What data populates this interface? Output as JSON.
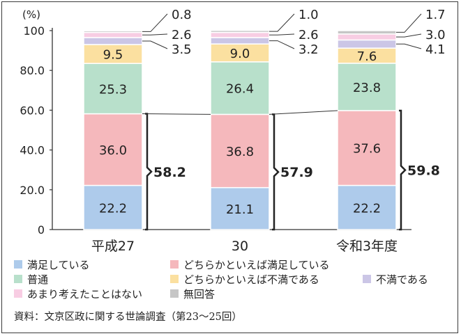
{
  "chart_data": {
    "type": "bar",
    "stacked": true,
    "y_unit": "(%)",
    "ylim": [
      0,
      100
    ],
    "y_ticks": [
      "0",
      "20.0",
      "40.0",
      "60.0",
      "80.0",
      "100"
    ],
    "categories": [
      "平成27",
      "30",
      "令和3年度"
    ],
    "series": [
      {
        "name": "満足している",
        "color": "#aecbeb",
        "values": [
          22.2,
          21.1,
          22.2
        ]
      },
      {
        "name": "どちらかといえば満足している",
        "color": "#f5b8bc",
        "values": [
          36.0,
          36.8,
          37.6
        ]
      },
      {
        "name": "普通",
        "color": "#b8e0cb",
        "values": [
          25.3,
          26.4,
          23.8
        ]
      },
      {
        "name": "どちらかといえば不満である",
        "color": "#fbe0a0",
        "values": [
          9.5,
          9.0,
          7.6
        ]
      },
      {
        "name": "不満である",
        "color": "#cbc6e6",
        "values": [
          3.5,
          3.2,
          4.1
        ]
      },
      {
        "name": "あまり考えたことはない",
        "color": "#f8cde3",
        "values": [
          2.6,
          2.6,
          3.0
        ]
      },
      {
        "name": "無回答",
        "color": "#c6c6c6",
        "values": [
          0.8,
          1.0,
          1.7
        ]
      }
    ],
    "value_labels": [
      [
        "22.2",
        "36.0",
        "25.3",
        "9.5",
        "3.5",
        "2.6",
        "0.8"
      ],
      [
        "21.1",
        "36.8",
        "26.4",
        "9.0",
        "3.2",
        "2.6",
        "1.0"
      ],
      [
        "22.2",
        "37.6",
        "23.8",
        "7.6",
        "4.1",
        "3.0",
        "1.7"
      ]
    ],
    "bracket_totals": [
      "58.2",
      "57.9",
      "59.8"
    ],
    "grid": false,
    "legend_placement": "bottom"
  },
  "source_note": "資料：文京区政に関する世論調査（第23～25回）"
}
